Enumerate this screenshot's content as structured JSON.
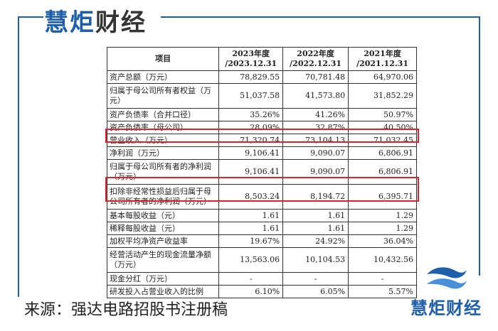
{
  "brand": {
    "name": "慧炬财经",
    "top_chars": [
      "慧",
      "炬",
      "财",
      "经"
    ],
    "primary_color": "#1f5ea8",
    "accent_color": "#d9232d"
  },
  "table": {
    "headers": [
      "项目",
      "2023年度\n/2023.12.31",
      "2022年度\n/2022.12.31",
      "2021年度\n/2021.12.31"
    ],
    "rows": [
      {
        "label": "资产总额（万元）",
        "v": [
          "78,829.55",
          "70,781.48",
          "64,970.06"
        ]
      },
      {
        "label": "归属于母公司所有者权益（万元）",
        "v": [
          "51,037.58",
          "41,573.80",
          "31,852.29"
        ]
      },
      {
        "label": "资产负债率（合并口径）",
        "v": [
          "35.26%",
          "41.26%",
          "50.97%"
        ]
      },
      {
        "label": "资产负债率（母公司）",
        "v": [
          "28.09%",
          "32.87%",
          "40.50%"
        ]
      },
      {
        "label": "营业收入（万元）",
        "v": [
          "71,320.74",
          "73,104.13",
          "71,032.45"
        ]
      },
      {
        "label": "净利润（万元）",
        "v": [
          "9,106.41",
          "9,090.07",
          "6,806.91"
        ]
      },
      {
        "label": "归属于母公司所有者的净利润（万元）",
        "v": [
          "9,106.41",
          "9,090.07",
          "6,806.91"
        ]
      },
      {
        "label": "扣除非经常性损益后归属于母公司所有者的净利润（万元）",
        "v": [
          "8,503.24",
          "8,194.72",
          "6,395.71"
        ]
      },
      {
        "label": "基本每股收益（元）",
        "v": [
          "1.61",
          "1.61",
          "1.29"
        ]
      },
      {
        "label": "稀释每股收益（元）",
        "v": [
          "1.61",
          "1.61",
          "1.29"
        ]
      },
      {
        "label": "加权平均净资产收益率",
        "v": [
          "19.67%",
          "24.92%",
          "36.04%"
        ]
      },
      {
        "label": "经营活动产生的现金流量净额（万元）",
        "v": [
          "13,563.06",
          "10,104.53",
          "10,432.56"
        ]
      },
      {
        "label": "现金分红（万元）",
        "v": [
          "-",
          "-",
          "-"
        ]
      },
      {
        "label": "研发投入占营业收入的比例",
        "v": [
          "6.10%",
          "6.05%",
          "5.57%"
        ]
      }
    ]
  },
  "source_text": "来源：强达电路招股书注册稿",
  "icons": {
    "logo": "wave-logo-icon"
  }
}
